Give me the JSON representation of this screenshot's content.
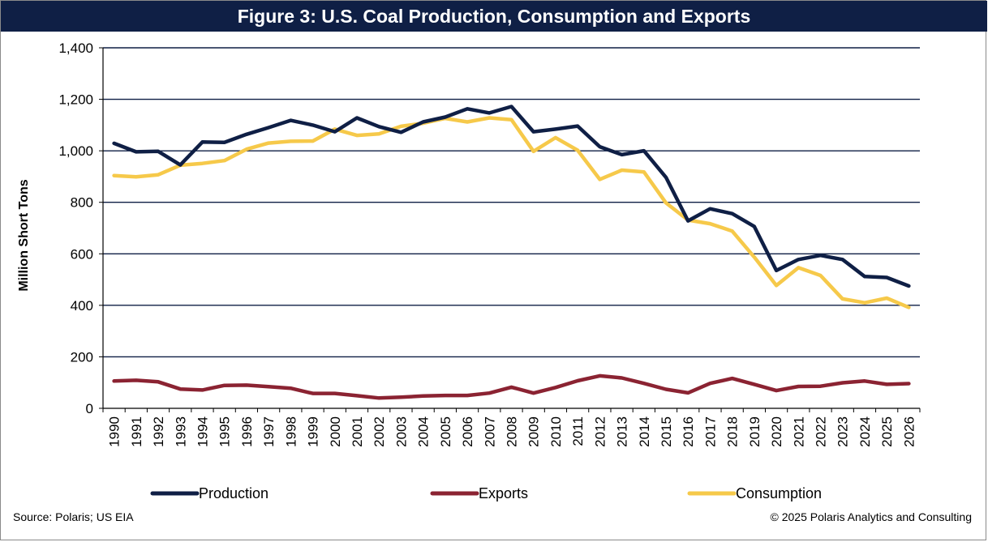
{
  "header": {
    "title": "Figure 3: U.S. Coal Production, Consumption and Exports"
  },
  "footer": {
    "source": "Source:  Polaris; US EIA",
    "copyright": "© 2025 Polaris Analytics and Consulting"
  },
  "chart_data": {
    "type": "line",
    "title": "Figure 3: U.S. Coal Production, Consumption and Exports",
    "xlabel": "",
    "ylabel": "Million  Short Tons",
    "ylim": [
      0,
      1400
    ],
    "yticks": [
      0,
      200,
      400,
      600,
      800,
      1000,
      1200,
      1400
    ],
    "ytick_labels": [
      "0",
      "200",
      "400",
      "600",
      "800",
      "1,000",
      "1,200",
      "1,400"
    ],
    "grid": true,
    "legend_position": "bottom",
    "x": [
      "1990",
      "1991",
      "1992",
      "1993",
      "1994",
      "1995",
      "1996",
      "1997",
      "1998",
      "1999",
      "2000",
      "2001",
      "2002",
      "2003",
      "2004",
      "2005",
      "2006",
      "2007",
      "2008",
      "2009",
      "2010",
      "2011",
      "2012",
      "2013",
      "2014",
      "2015",
      "2016",
      "2017",
      "2018",
      "2019",
      "2020",
      "2021",
      "2022",
      "2023",
      "2024",
      "2025",
      "2026"
    ],
    "series": [
      {
        "name": "Production",
        "color": "#0f1f45",
        "values": [
          1029,
          996,
          998,
          945,
          1034,
          1033,
          1064,
          1090,
          1118,
          1100,
          1074,
          1128,
          1094,
          1072,
          1112,
          1131,
          1163,
          1147,
          1172,
          1074,
          1084,
          1096,
          1016,
          985,
          1000,
          897,
          728,
          775,
          756,
          706,
          535,
          578,
          594,
          578,
          512,
          508,
          475
        ]
      },
      {
        "name": "Exports",
        "color": "#8b2332",
        "values": [
          106,
          109,
          103,
          75,
          71,
          89,
          90,
          84,
          78,
          58,
          58,
          49,
          40,
          43,
          48,
          50,
          50,
          59,
          82,
          59,
          81,
          107,
          126,
          118,
          97,
          74,
          60,
          97,
          116,
          93,
          69,
          85,
          86,
          99,
          106,
          93,
          96
        ]
      },
      {
        "name": "Consumption",
        "color": "#f6c94a",
        "values": [
          904,
          899,
          907,
          944,
          951,
          962,
          1006,
          1030,
          1037,
          1038,
          1084,
          1060,
          1066,
          1095,
          1107,
          1126,
          1112,
          1128,
          1121,
          998,
          1051,
          1002,
          889,
          925,
          918,
          798,
          731,
          717,
          688,
          587,
          477,
          546,
          516,
          425,
          410,
          428,
          392
        ]
      }
    ]
  }
}
